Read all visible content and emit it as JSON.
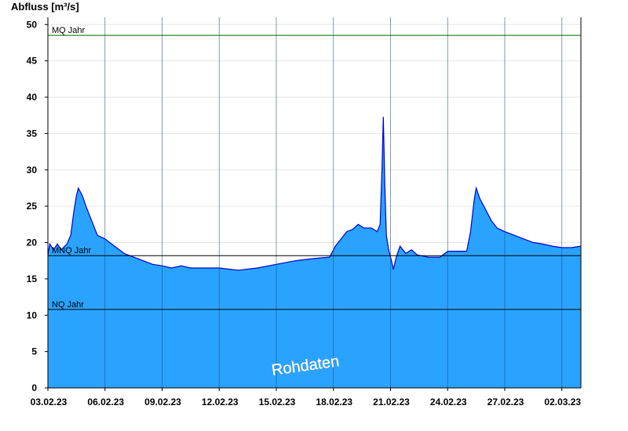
{
  "chart_data": {
    "type": "area",
    "ylabel": "Abfluss [m³/s]",
    "ylim": [
      0,
      51
    ],
    "yticks": [
      0,
      5,
      10,
      15,
      20,
      25,
      30,
      35,
      40,
      45,
      50
    ],
    "x_start": "03.02.23",
    "x_end": "02.03.23",
    "xticks": [
      {
        "day": 0,
        "label": "03.02.23"
      },
      {
        "day": 3,
        "label": "06.02.23"
      },
      {
        "day": 6,
        "label": "09.02.23"
      },
      {
        "day": 9,
        "label": "12.02.23"
      },
      {
        "day": 12,
        "label": "15.02.23"
      },
      {
        "day": 15,
        "label": "18.02.23"
      },
      {
        "day": 18,
        "label": "21.02.23"
      },
      {
        "day": 21,
        "label": "24.02.23"
      },
      {
        "day": 24,
        "label": "27.02.23"
      },
      {
        "day": 27,
        "label": "02.03.23"
      }
    ],
    "grid": true,
    "series": [
      {
        "values": [
          [
            0,
            18.3
          ],
          [
            0.1,
            19.8
          ],
          [
            0.3,
            19.0
          ],
          [
            0.5,
            19.8
          ],
          [
            0.7,
            19.0
          ],
          [
            1.0,
            19.8
          ],
          [
            1.2,
            21.0
          ],
          [
            1.35,
            24.0
          ],
          [
            1.5,
            26.5
          ],
          [
            1.6,
            27.5
          ],
          [
            1.8,
            26.5
          ],
          [
            2.0,
            25.0
          ],
          [
            2.3,
            23.0
          ],
          [
            2.6,
            21.0
          ],
          [
            3.0,
            20.5
          ],
          [
            3.5,
            19.5
          ],
          [
            4.0,
            18.5
          ],
          [
            4.5,
            18.0
          ],
          [
            5.0,
            17.5
          ],
          [
            5.5,
            17.0
          ],
          [
            6.0,
            16.8
          ],
          [
            6.5,
            16.5
          ],
          [
            7.0,
            16.8
          ],
          [
            7.5,
            16.5
          ],
          [
            8.0,
            16.5
          ],
          [
            9.0,
            16.5
          ],
          [
            10.0,
            16.2
          ],
          [
            11.0,
            16.5
          ],
          [
            12.0,
            17.0
          ],
          [
            13.0,
            17.5
          ],
          [
            14.0,
            17.8
          ],
          [
            14.8,
            18.0
          ],
          [
            15.1,
            19.5
          ],
          [
            15.4,
            20.5
          ],
          [
            15.7,
            21.5
          ],
          [
            16.0,
            21.8
          ],
          [
            16.3,
            22.5
          ],
          [
            16.6,
            22.0
          ],
          [
            17.0,
            22.0
          ],
          [
            17.3,
            21.5
          ],
          [
            17.45,
            22.5
          ],
          [
            17.55,
            30.0
          ],
          [
            17.62,
            37.3
          ],
          [
            17.7,
            28.0
          ],
          [
            17.78,
            21.0
          ],
          [
            17.9,
            19.0
          ],
          [
            18.05,
            17.5
          ],
          [
            18.15,
            16.3
          ],
          [
            18.3,
            18.0
          ],
          [
            18.5,
            19.5
          ],
          [
            18.8,
            18.5
          ],
          [
            19.1,
            19.0
          ],
          [
            19.4,
            18.3
          ],
          [
            20.0,
            18.0
          ],
          [
            20.6,
            18.0
          ],
          [
            21.0,
            18.8
          ],
          [
            21.6,
            18.8
          ],
          [
            22.0,
            18.8
          ],
          [
            22.2,
            21.5
          ],
          [
            22.4,
            26.0
          ],
          [
            22.5,
            27.5
          ],
          [
            22.7,
            26.0
          ],
          [
            23.0,
            24.5
          ],
          [
            23.3,
            23.0
          ],
          [
            23.6,
            22.0
          ],
          [
            24.0,
            21.5
          ],
          [
            24.5,
            21.0
          ],
          [
            25.0,
            20.5
          ],
          [
            25.5,
            20.0
          ],
          [
            26.0,
            19.8
          ],
          [
            26.5,
            19.5
          ],
          [
            27.0,
            19.3
          ],
          [
            27.5,
            19.3
          ],
          [
            28.0,
            19.5
          ]
        ]
      }
    ],
    "reference_lines": [
      {
        "label": "MQ Jahr",
        "value": 48.5,
        "color": "#006400"
      },
      {
        "label": "MNQ Jahr",
        "value": 18.2,
        "color": "#000000"
      },
      {
        "label": "NQ Jahr",
        "value": 10.8,
        "color": "#000000"
      }
    ],
    "colors": {
      "area": "#29a3ff",
      "outline": "#0000cc"
    },
    "annotation": "Rohdaten"
  }
}
